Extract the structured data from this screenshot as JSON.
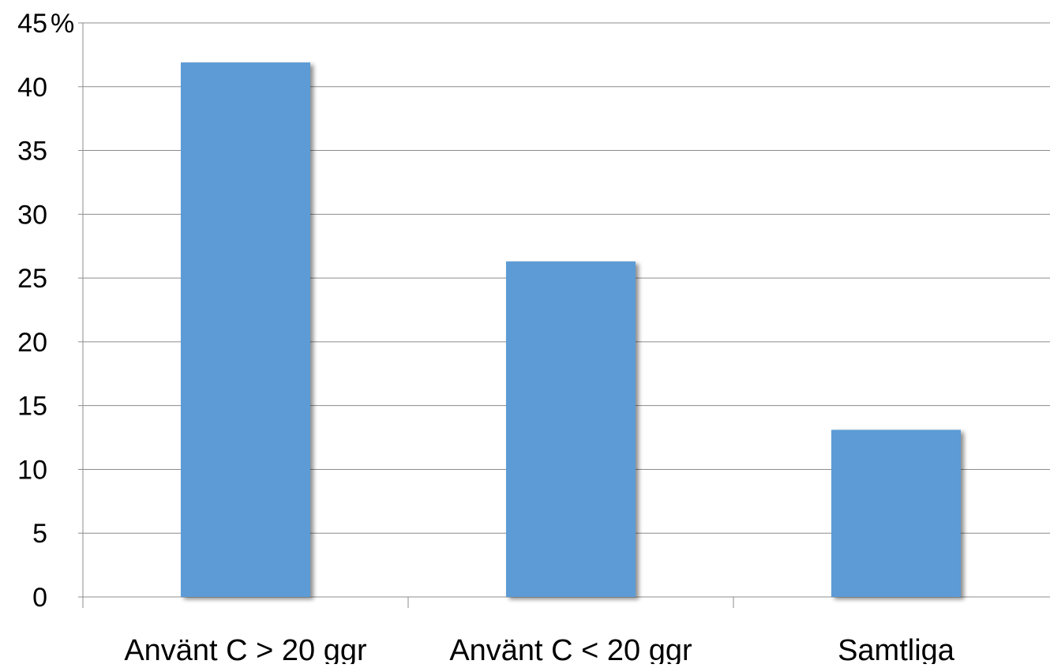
{
  "chart_data": {
    "type": "bar",
    "categories": [
      "Använt C > 20 ggr",
      "Använt C < 20 ggr",
      "Samtliga"
    ],
    "values": [
      41.9,
      26.3,
      13.1
    ],
    "ylim": [
      0,
      45
    ],
    "yticks": [
      "0",
      "5",
      "10",
      "15",
      "20",
      "25",
      "30",
      "35",
      "40",
      "45"
    ],
    "y_unit": "%",
    "grid": true,
    "bar_color": "#5B9BD5",
    "title": "",
    "xlabel": "",
    "ylabel": ""
  }
}
